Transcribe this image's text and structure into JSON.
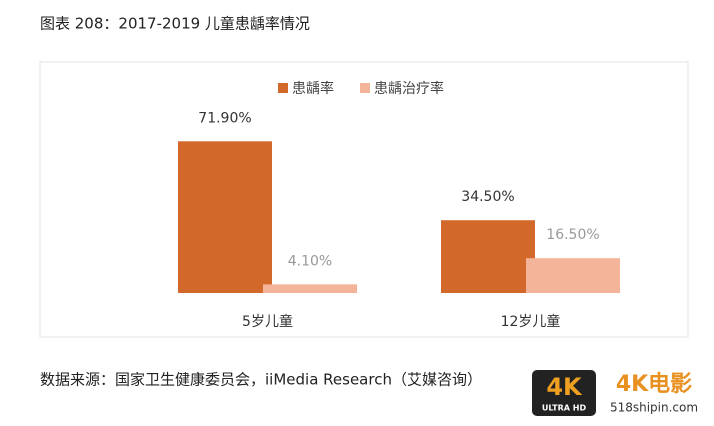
{
  "chart_data": {
    "type": "bar",
    "title": "图表 208：2017-2019 儿童患龋率情况",
    "categories": [
      "5岁儿童",
      "12岁儿童"
    ],
    "series": [
      {
        "name": "患龋率",
        "color": "#d2692a",
        "values": [
          71.9,
          34.5
        ],
        "value_labels": [
          "71.90%",
          "34.50%"
        ]
      },
      {
        "name": "患龋治疗率",
        "color": "#f4b49a",
        "values": [
          4.1,
          16.5
        ],
        "value_labels": [
          "4.10%",
          "16.50%"
        ]
      }
    ],
    "legend": "top",
    "source": "数据来源：国家卫生健康委员会，iiMedia Research（艾媒咨询）"
  },
  "watermark": {
    "badge": "4K",
    "badge_sub": "ULTRA HD",
    "brand": "4K电影",
    "site": "518shipin.com"
  }
}
